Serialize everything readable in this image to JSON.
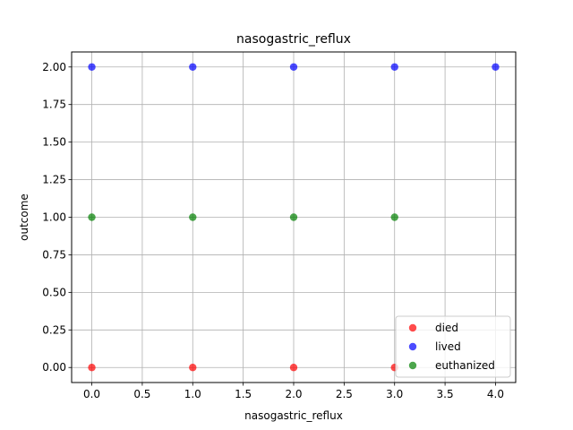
{
  "chart_data": {
    "type": "scatter",
    "title": "nasogastric_reflux",
    "xlabel": "nasogastric_reflux",
    "ylabel": "outcome",
    "xlim": [
      -0.2,
      4.2
    ],
    "ylim": [
      -0.1,
      2.1
    ],
    "xticks": [
      "0.0",
      "0.5",
      "1.0",
      "1.5",
      "2.0",
      "2.5",
      "3.0",
      "3.5",
      "4.0"
    ],
    "yticks": [
      "0.00",
      "0.25",
      "0.50",
      "0.75",
      "1.00",
      "1.25",
      "1.50",
      "1.75",
      "2.00"
    ],
    "grid": true,
    "legend_position": "bottom-right",
    "series": [
      {
        "name": "died",
        "color": "#ff0000",
        "points": [
          [
            0,
            0
          ],
          [
            1,
            0
          ],
          [
            2,
            0
          ],
          [
            3,
            0
          ]
        ]
      },
      {
        "name": "lived",
        "color": "#0000ff",
        "points": [
          [
            0,
            2
          ],
          [
            1,
            2
          ],
          [
            2,
            2
          ],
          [
            3,
            2
          ],
          [
            4,
            2
          ]
        ]
      },
      {
        "name": "euthanized",
        "color": "#008000",
        "points": [
          [
            0,
            1
          ],
          [
            1,
            1
          ],
          [
            2,
            1
          ],
          [
            3,
            1
          ]
        ]
      }
    ]
  }
}
